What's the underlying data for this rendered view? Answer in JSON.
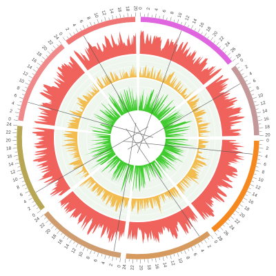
{
  "chart_data": {
    "type": "circos",
    "title": "",
    "gap_degrees": 2.4,
    "tick_step": 2,
    "segments": [
      {
        "color": "#E066E0",
        "length": 28
      },
      {
        "color": "#C49898",
        "length": 20
      },
      {
        "color": "#F5891F",
        "length": 28
      },
      {
        "color": "#D69A5E",
        "length": 24
      },
      {
        "color": "#CE9C6E",
        "length": 24
      },
      {
        "color": "#B7A653",
        "length": 24
      },
      {
        "color": "#F08A8A",
        "length": 24
      },
      {
        "color": "#F07676",
        "length": 20
      }
    ],
    "tracks": [
      {
        "name": "",
        "color": "#F0625C",
        "r_inner": 122,
        "r_outer": 158,
        "base": 0.62,
        "variability": 0.45
      },
      {
        "name": "",
        "color": "#F2BC4E",
        "r_inner": 88,
        "r_outer": 118,
        "base": 0.22,
        "variability": 0.55
      },
      {
        "name": "",
        "color": "#40CC2E",
        "r_inner": 40,
        "r_outer": 84,
        "base": 0.35,
        "variability": 0.6
      }
    ],
    "background_bands": {
      "color": "#EEF6EE",
      "rings": [
        [
          88,
          120
        ],
        [
          40,
          86
        ]
      ]
    },
    "links": {
      "color": "#555555",
      "count": 8
    }
  }
}
